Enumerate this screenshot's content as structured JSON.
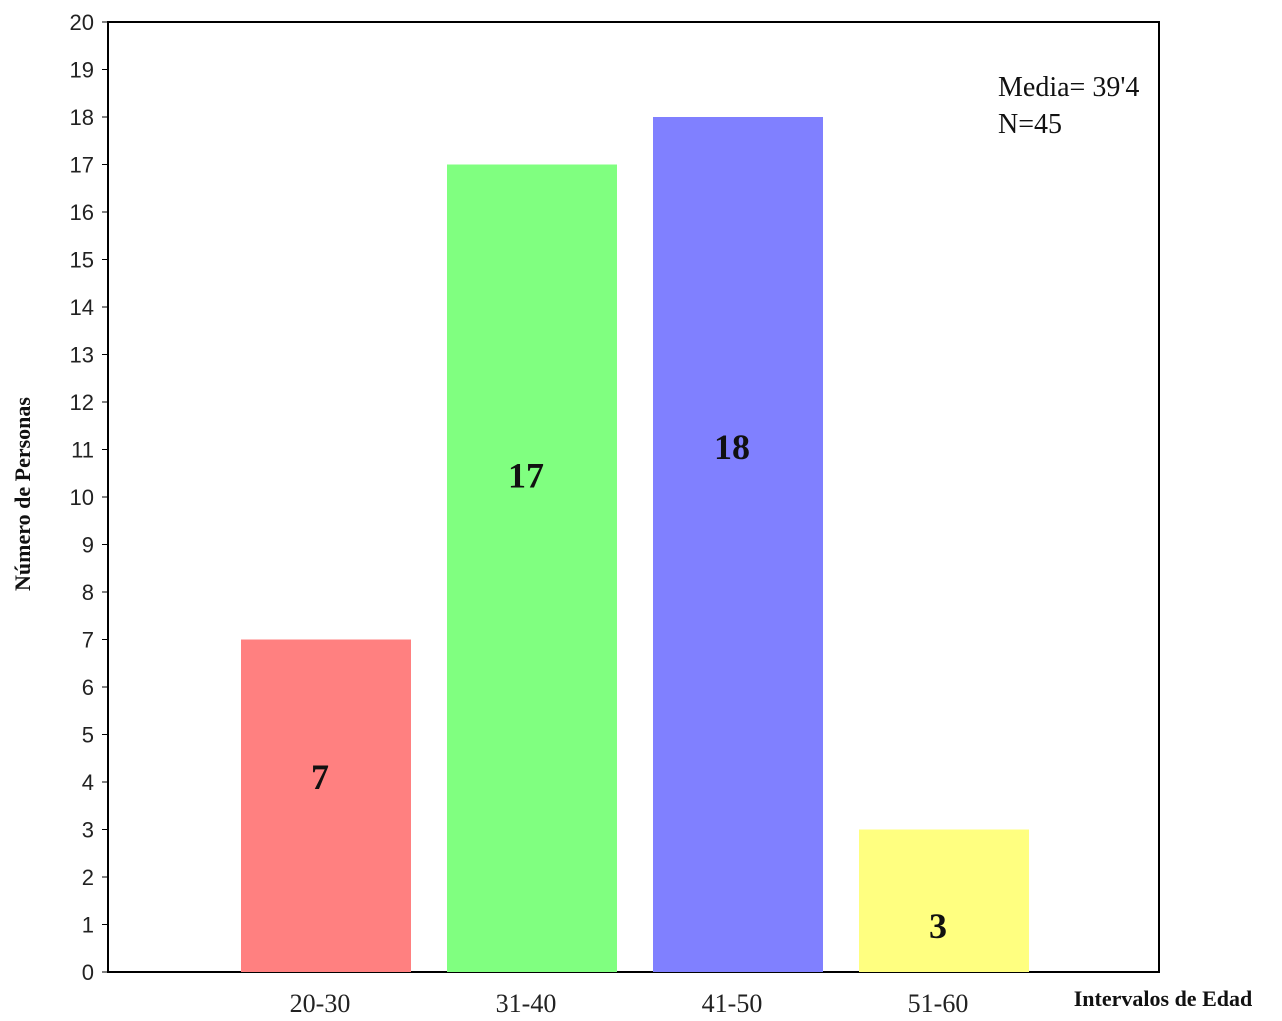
{
  "chart_data": {
    "type": "bar",
    "categories": [
      "20-30",
      "31-40",
      "41-50",
      "51-60"
    ],
    "values": [
      7,
      17,
      18,
      3
    ],
    "colors": [
      "#ff8080",
      "#80ff80",
      "#8080ff",
      "#ffff80"
    ],
    "xlabel": "Intervalos de Edad",
    "ylabel": "Número de Personas",
    "ylim": [
      0,
      20
    ],
    "yticks": [
      0,
      1,
      2,
      3,
      4,
      5,
      6,
      7,
      8,
      9,
      10,
      11,
      12,
      13,
      14,
      15,
      16,
      17,
      18,
      19,
      20
    ],
    "annotations": [
      "Media= 39'4",
      "N=45"
    ],
    "grid": false
  }
}
